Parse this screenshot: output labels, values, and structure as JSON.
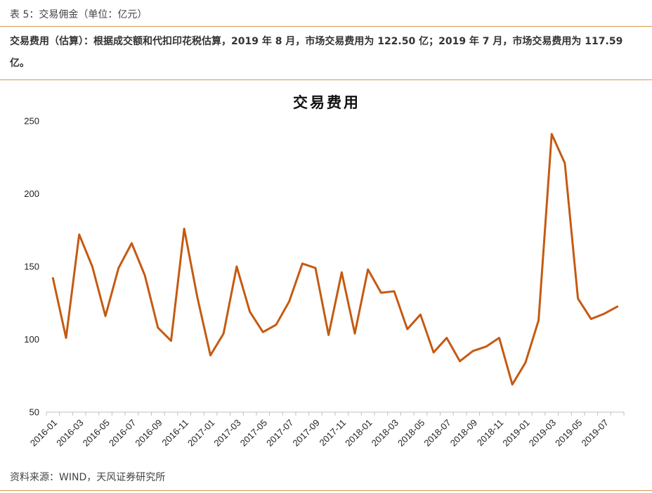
{
  "header": {
    "table_title": "表 5：交易佣金（单位：亿元）"
  },
  "description": "交易费用（估算）：根据成交额和代扣印花税估算，2019 年 8 月，市场交易费用为 122.50 亿；2019 年 7 月，市场交易费用为 117.59 亿。",
  "footer": {
    "source": "资料来源：WIND，天风证券研究所"
  },
  "colors": {
    "line": "#c55a11",
    "rule": "#d89a4a",
    "axis": "#bfbfbf"
  },
  "chart_data": {
    "type": "line",
    "title": "交易费用",
    "xlabel": "",
    "ylabel": "",
    "ylim": [
      50,
      250
    ],
    "yticks": [
      50,
      100,
      150,
      200,
      250
    ],
    "grid": false,
    "legend": "none",
    "x": [
      "2016-01",
      "2016-02",
      "2016-03",
      "2016-04",
      "2016-05",
      "2016-06",
      "2016-07",
      "2016-08",
      "2016-09",
      "2016-10",
      "2016-11",
      "2016-12",
      "2017-01",
      "2017-02",
      "2017-03",
      "2017-04",
      "2017-05",
      "2017-06",
      "2017-07",
      "2017-08",
      "2017-09",
      "2017-10",
      "2017-11",
      "2017-12",
      "2018-01",
      "2018-02",
      "2018-03",
      "2018-04",
      "2018-05",
      "2018-06",
      "2018-07",
      "2018-08",
      "2018-09",
      "2018-10",
      "2018-11",
      "2018-12",
      "2019-01",
      "2019-02",
      "2019-03",
      "2019-04",
      "2019-05",
      "2019-06",
      "2019-07",
      "2019-08"
    ],
    "xticklabels": [
      "2016-01",
      "2016-03",
      "2016-05",
      "2016-07",
      "2016-09",
      "2016-11",
      "2017-01",
      "2017-03",
      "2017-05",
      "2017-07",
      "2017-09",
      "2017-11",
      "2018-01",
      "2018-03",
      "2018-05",
      "2018-07",
      "2018-09",
      "2018-11",
      "2019-01",
      "2019-03",
      "2019-05",
      "2019-07"
    ],
    "series": [
      {
        "name": "",
        "values": [
          142,
          101,
          172,
          150,
          116,
          149,
          166,
          144,
          108,
          99,
          176,
          129,
          89,
          104,
          150,
          119,
          105,
          110,
          126,
          152,
          149,
          103,
          146,
          104,
          148,
          132,
          133,
          107,
          117,
          91,
          101,
          85,
          92,
          95,
          101,
          69,
          84,
          113,
          241,
          221,
          128,
          114,
          117.59,
          122.5
        ]
      }
    ]
  }
}
